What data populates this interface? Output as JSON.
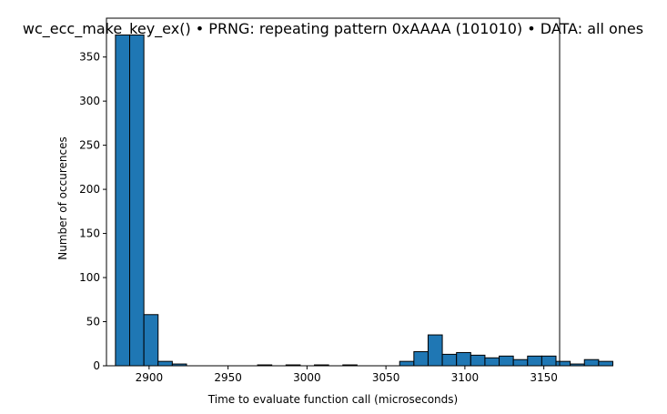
{
  "chart_data": {
    "type": "bar",
    "title": "wc_ecc_make_key_ex() • PRNG: repeating pattern 0xAAAA (101010) • DATA: all ones",
    "xlabel": "Time to evaluate function call (microseconds)",
    "ylabel": "Number of occurences",
    "xlim": [
      2873,
      3160
    ],
    "ylim": [
      0,
      394
    ],
    "bin_start": 2878.7,
    "bin_width": 9.0,
    "values": [
      375,
      375,
      58,
      5,
      2,
      0,
      0,
      0,
      0,
      0,
      1,
      0,
      1,
      0,
      1,
      0,
      1,
      0,
      0,
      0,
      5,
      16,
      35,
      13,
      15,
      12,
      9,
      11,
      7,
      11,
      11,
      5,
      2,
      7,
      5
    ],
    "xticks": [
      2900,
      2950,
      3000,
      3050,
      3100,
      3150
    ],
    "yticks": [
      0,
      50,
      100,
      150,
      200,
      250,
      300,
      350
    ],
    "bar_color": "#1f77b4",
    "edge_color": "#000000",
    "grid": false,
    "legend": "none"
  }
}
